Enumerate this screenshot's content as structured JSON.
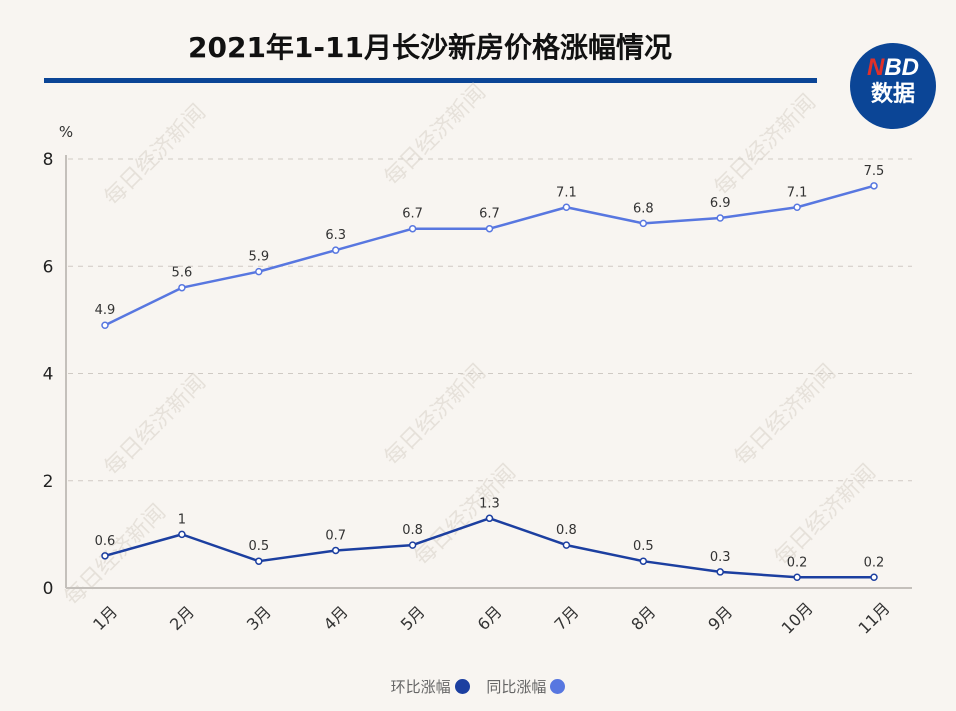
{
  "header": {
    "title": "2021年1-11月长沙新房价格涨幅情况",
    "logo_top_accent": "N",
    "logo_top_rest": "BD",
    "logo_bottom": "数据"
  },
  "colors": {
    "title_bar": "#0b4596",
    "series_mom": "#1c3fa0",
    "series_yoy": "#5877e0",
    "background": "#f8f5f1"
  },
  "watermark": "每日经济新闻",
  "legend": [
    {
      "label": "环比涨幅",
      "color": "#1c3fa0"
    },
    {
      "label": "同比涨幅",
      "color": "#5877e0"
    }
  ],
  "chart_data": {
    "type": "line",
    "title": "2021年1-11月长沙新房价格涨幅情况",
    "xlabel": "",
    "ylabel": "%",
    "ylim": [
      0,
      8
    ],
    "yticks": [
      0,
      2,
      4,
      6,
      8
    ],
    "grid": "horizontal dashed",
    "legend_position": "bottom",
    "categories": [
      "1月",
      "2月",
      "3月",
      "4月",
      "5月",
      "6月",
      "7月",
      "8月",
      "9月",
      "10月",
      "11月"
    ],
    "series": [
      {
        "name": "环比涨幅",
        "values": [
          0.6,
          1,
          0.5,
          0.7,
          0.8,
          1.3,
          0.8,
          0.5,
          0.3,
          0.2,
          0.2
        ]
      },
      {
        "name": "同比涨幅",
        "values": [
          4.9,
          5.6,
          5.9,
          6.3,
          6.7,
          6.7,
          7.1,
          6.8,
          6.9,
          7.1,
          7.5
        ]
      }
    ]
  }
}
